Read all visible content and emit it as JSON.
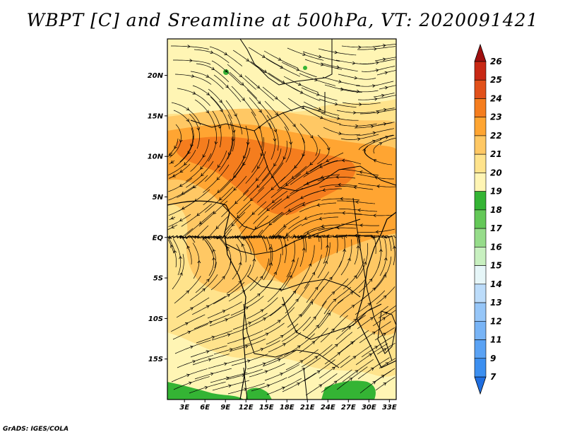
{
  "title": "WBPT [C] and Sreamline at 500hPa, VT: 2020091421",
  "credit": "GrADS: IGES/COLA",
  "map": {
    "lat_labels": [
      "20N",
      "15N",
      "10N",
      "5N",
      "EQ",
      "5S",
      "10S",
      "15S"
    ],
    "lat_values": [
      20,
      15,
      10,
      5,
      0,
      -5,
      -10,
      -15
    ],
    "lon_labels": [
      "3E",
      "6E",
      "9E",
      "12E",
      "15E",
      "18E",
      "21E",
      "24E",
      "27E",
      "30E",
      "33E"
    ],
    "lon_values": [
      3,
      6,
      9,
      12,
      15,
      18,
      21,
      24,
      27,
      30,
      33
    ],
    "lon_range": [
      0.5,
      34
    ],
    "lat_range": [
      -20,
      24.5
    ]
  },
  "colorbar": {
    "labels": [
      "7",
      "9",
      "11",
      "12",
      "13",
      "14",
      "15",
      "16",
      "17",
      "18",
      "19",
      "20",
      "21",
      "22",
      "23",
      "24",
      "25",
      "26"
    ],
    "colors": [
      "#1f6ee0",
      "#2a80e8",
      "#3c8ff0",
      "#5aa2f4",
      "#78b4f6",
      "#96c6f8",
      "#bcdcfa",
      "#e6f6f8",
      "#c8f0c0",
      "#96dc8a",
      "#64c858",
      "#34b434",
      "#fff5b4",
      "#ffe38c",
      "#ffc864",
      "#ffa532",
      "#f57d1e",
      "#e1501a",
      "#c82814",
      "#a01010"
    ],
    "arrow_bottom": "#1f6ee0",
    "arrow_top": "#a01010"
  }
}
